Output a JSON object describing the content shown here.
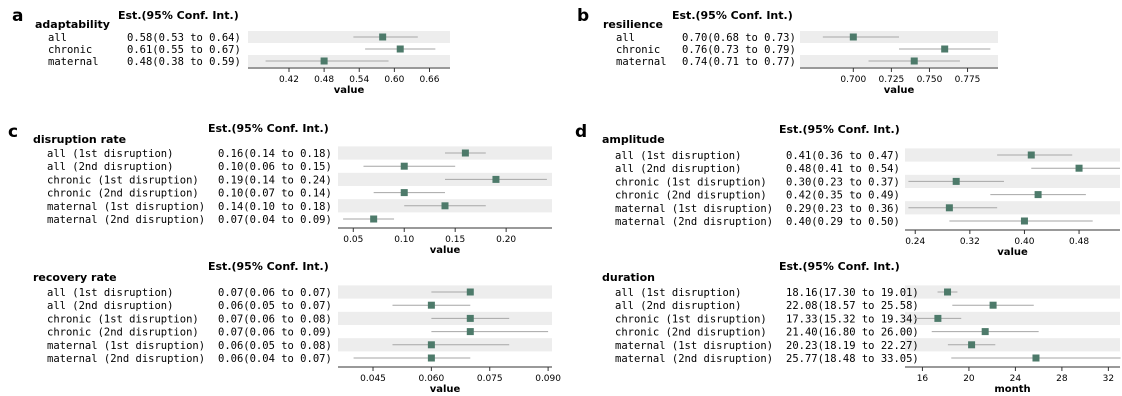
{
  "colors": {
    "marker": "#4d7a6a",
    "ci_line": "#a6a6a6",
    "band": "#ededed",
    "axis": "#333333"
  },
  "header_label": "Est.(95% Conf. Int.)",
  "chart_data": [
    {
      "panel": "a",
      "type": "forest",
      "title": "adaptability",
      "xlabel": "value",
      "xlim": [
        0.35,
        0.695
      ],
      "xticks": [
        "0.42",
        "0.48",
        "0.54",
        "0.60",
        "0.66"
      ],
      "rows": [
        {
          "label": "all",
          "est": 0.58,
          "lo": 0.53,
          "hi": 0.64,
          "text": "0.58(0.53 to 0.64)"
        },
        {
          "label": "chronic",
          "est": 0.61,
          "lo": 0.55,
          "hi": 0.67,
          "text": "0.61(0.55 to 0.67)"
        },
        {
          "label": "maternal",
          "est": 0.48,
          "lo": 0.38,
          "hi": 0.59,
          "text": "0.48(0.38 to 0.59)"
        }
      ]
    },
    {
      "panel": "b",
      "type": "forest",
      "title": "resilience",
      "xlabel": "value",
      "xlim": [
        0.665,
        0.795
      ],
      "xticks": [
        "0.700",
        "0.725",
        "0.750",
        "0.775"
      ],
      "rows": [
        {
          "label": "all",
          "est": 0.7,
          "lo": 0.68,
          "hi": 0.73,
          "text": "0.70(0.68 to 0.73)"
        },
        {
          "label": "chronic",
          "est": 0.76,
          "lo": 0.73,
          "hi": 0.79,
          "text": "0.76(0.73 to 0.79)"
        },
        {
          "label": "maternal",
          "est": 0.74,
          "lo": 0.71,
          "hi": 0.77,
          "text": "0.74(0.71 to 0.77)"
        }
      ]
    },
    {
      "panel": "c",
      "type": "forest",
      "title": "disruption rate",
      "xlabel": "value",
      "xlim": [
        0.035,
        0.245
      ],
      "xticks": [
        "0.05",
        "0.10",
        "0.15",
        "0.20"
      ],
      "rows": [
        {
          "label": "all (1st disruption)",
          "est": 0.16,
          "lo": 0.14,
          "hi": 0.18,
          "text": "0.16(0.14 to 0.18)"
        },
        {
          "label": "all (2nd disruption)",
          "est": 0.1,
          "lo": 0.06,
          "hi": 0.15,
          "text": "0.10(0.06 to 0.15)"
        },
        {
          "label": "chronic (1st disruption)",
          "est": 0.19,
          "lo": 0.14,
          "hi": 0.24,
          "text": "0.19(0.14 to 0.24)"
        },
        {
          "label": "chronic (2nd disruption)",
          "est": 0.1,
          "lo": 0.07,
          "hi": 0.14,
          "text": "0.10(0.07 to 0.14)"
        },
        {
          "label": "maternal (1st disruption)",
          "est": 0.14,
          "lo": 0.1,
          "hi": 0.18,
          "text": "0.14(0.10 to 0.18)"
        },
        {
          "label": "maternal (2nd disruption)",
          "est": 0.07,
          "lo": 0.04,
          "hi": 0.09,
          "text": "0.07(0.04 to 0.09)"
        }
      ]
    },
    {
      "panel": "",
      "type": "forest",
      "title": "recovery rate",
      "xlabel": "value",
      "xlim": [
        0.036,
        0.091
      ],
      "xticks": [
        "0.045",
        "0.060",
        "0.075",
        "0.090"
      ],
      "rows": [
        {
          "label": "all (1st disruption)",
          "est": 0.07,
          "lo": 0.06,
          "hi": 0.07,
          "text": "0.07(0.06 to 0.07)"
        },
        {
          "label": "all (2nd disruption)",
          "est": 0.06,
          "lo": 0.05,
          "hi": 0.07,
          "text": "0.06(0.05 to 0.07)"
        },
        {
          "label": "chronic (1st disruption)",
          "est": 0.07,
          "lo": 0.06,
          "hi": 0.08,
          "text": "0.07(0.06 to 0.08)"
        },
        {
          "label": "chronic (2nd disruption)",
          "est": 0.07,
          "lo": 0.06,
          "hi": 0.09,
          "text": "0.07(0.06 to 0.09)"
        },
        {
          "label": "maternal (1st disruption)",
          "est": 0.06,
          "lo": 0.05,
          "hi": 0.08,
          "text": "0.06(0.05 to 0.08)"
        },
        {
          "label": "maternal (2nd disruption)",
          "est": 0.06,
          "lo": 0.04,
          "hi": 0.07,
          "text": "0.06(0.04 to 0.07)"
        }
      ]
    },
    {
      "panel": "d",
      "type": "forest",
      "title": "amplitude",
      "xlabel": "value",
      "xlim": [
        0.225,
        0.54
      ],
      "xticks": [
        "0.24",
        "0.32",
        "0.40",
        "0.48"
      ],
      "rows": [
        {
          "label": "all (1st disruption)",
          "est": 0.41,
          "lo": 0.36,
          "hi": 0.47,
          "text": "0.41(0.36 to 0.47)"
        },
        {
          "label": "all (2nd disruption)",
          "est": 0.48,
          "lo": 0.41,
          "hi": 0.54,
          "text": "0.48(0.41 to 0.54)"
        },
        {
          "label": "chronic (1st disruption)",
          "est": 0.3,
          "lo": 0.23,
          "hi": 0.37,
          "text": "0.30(0.23 to 0.37)"
        },
        {
          "label": "chronic (2nd disruption)",
          "est": 0.42,
          "lo": 0.35,
          "hi": 0.49,
          "text": "0.42(0.35 to 0.49)"
        },
        {
          "label": "maternal (1st disruption)",
          "est": 0.29,
          "lo": 0.23,
          "hi": 0.36,
          "text": "0.29(0.23 to 0.36)"
        },
        {
          "label": "maternal (2nd disruption)",
          "est": 0.4,
          "lo": 0.29,
          "hi": 0.5,
          "text": "0.40(0.29 to 0.50)"
        }
      ]
    },
    {
      "panel": "",
      "type": "forest",
      "title": "duration",
      "xlabel": "month",
      "xlim": [
        14.5,
        33.0
      ],
      "xticks": [
        "16",
        "20",
        "24",
        "28",
        "32"
      ],
      "rows": [
        {
          "label": "all (1st disruption)",
          "est": 18.16,
          "lo": 17.3,
          "hi": 19.01,
          "text": "18.16(17.30 to 19.01)"
        },
        {
          "label": "all (2nd disruption)",
          "est": 22.08,
          "lo": 18.57,
          "hi": 25.58,
          "text": "22.08(18.57 to 25.58)"
        },
        {
          "label": "chronic (1st disruption)",
          "est": 17.33,
          "lo": 15.32,
          "hi": 19.34,
          "text": "17.33(15.32 to 19.34)"
        },
        {
          "label": "chronic (2nd disruption)",
          "est": 21.4,
          "lo": 16.8,
          "hi": 26.0,
          "text": "21.40(16.80 to 26.00)"
        },
        {
          "label": "maternal (1st disruption)",
          "est": 20.23,
          "lo": 18.19,
          "hi": 22.27,
          "text": "20.23(18.19 to 22.27)"
        },
        {
          "label": "maternal (2nd disruption)",
          "est": 25.77,
          "lo": 18.48,
          "hi": 33.05,
          "text": "25.77(18.48 to 33.05)"
        }
      ]
    }
  ]
}
